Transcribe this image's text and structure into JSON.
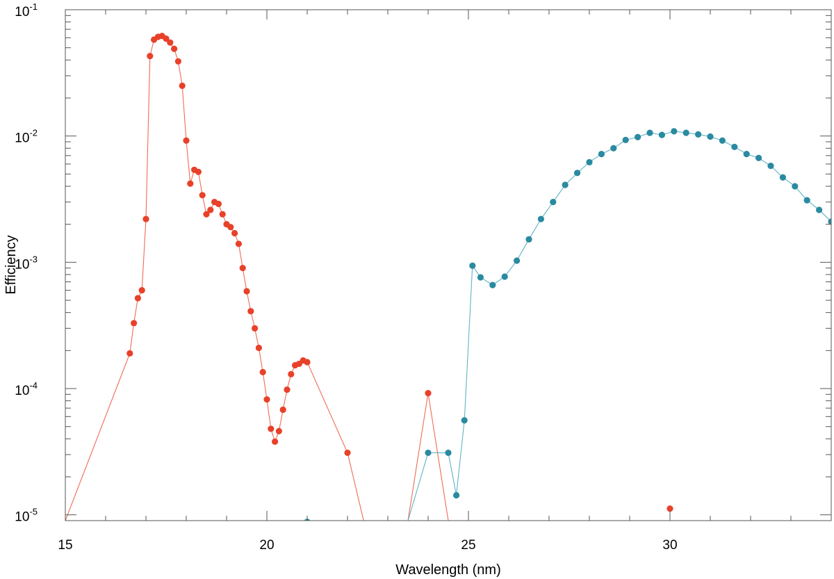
{
  "chart_data": {
    "type": "scatter",
    "title": "",
    "xlabel": "Wavelength (nm)",
    "ylabel": "Efficiency",
    "xlim": [
      15,
      34
    ],
    "ylim": [
      9e-06,
      0.1
    ],
    "yscale": "log",
    "grid": false,
    "x_ticks": [
      {
        "value": 15,
        "label": "15"
      },
      {
        "value": 20,
        "label": "20"
      },
      {
        "value": 25,
        "label": "25"
      },
      {
        "value": 30,
        "label": "30"
      }
    ],
    "y_ticks": [
      {
        "value": 1e-05,
        "base": "10",
        "exp": "-5"
      },
      {
        "value": 0.0001,
        "base": "10",
        "exp": "-4"
      },
      {
        "value": 0.001,
        "base": "10",
        "exp": "-3"
      },
      {
        "value": 0.01,
        "base": "10",
        "exp": "-2"
      },
      {
        "value": 0.1,
        "base": "10",
        "exp": "-1"
      }
    ],
    "series": [
      {
        "color": "#e8412a",
        "line_color": "#f06a55",
        "points": [
          [
            15.0,
            9e-06
          ],
          [
            16.6,
            0.00019
          ],
          [
            16.7,
            0.00033
          ],
          [
            16.8,
            0.00052
          ],
          [
            16.9,
            0.0006
          ],
          [
            17.0,
            0.0022
          ],
          [
            17.1,
            0.043
          ],
          [
            17.2,
            0.058
          ],
          [
            17.3,
            0.061
          ],
          [
            17.4,
            0.062
          ],
          [
            17.5,
            0.059
          ],
          [
            17.6,
            0.055
          ],
          [
            17.7,
            0.049
          ],
          [
            17.8,
            0.039
          ],
          [
            17.9,
            0.025
          ],
          [
            18.0,
            0.0092
          ],
          [
            18.1,
            0.0042
          ],
          [
            18.2,
            0.0054
          ],
          [
            18.3,
            0.0052
          ],
          [
            18.4,
            0.0034
          ],
          [
            18.5,
            0.0024
          ],
          [
            18.6,
            0.0026
          ],
          [
            18.7,
            0.003
          ],
          [
            18.8,
            0.0029
          ],
          [
            18.9,
            0.0024
          ],
          [
            19.0,
            0.002
          ],
          [
            19.1,
            0.0019
          ],
          [
            19.2,
            0.0017
          ],
          [
            19.3,
            0.0014
          ],
          [
            19.4,
            0.0009
          ],
          [
            19.5,
            0.00059
          ],
          [
            19.6,
            0.00041
          ],
          [
            19.7,
            0.0003
          ],
          [
            19.8,
            0.00021
          ],
          [
            19.9,
            0.000135
          ],
          [
            20.0,
            8.2e-05
          ],
          [
            20.1,
            4.8e-05
          ],
          [
            20.2,
            3.8e-05
          ],
          [
            20.3,
            4.6e-05
          ],
          [
            20.4,
            6.8e-05
          ],
          [
            20.5,
            9.8e-05
          ],
          [
            20.6,
            0.00013
          ],
          [
            20.7,
            0.000153
          ],
          [
            20.8,
            0.000157
          ],
          [
            20.9,
            0.000167
          ],
          [
            21.0,
            0.000162
          ],
          [
            22.0,
            3.1e-05
          ],
          [
            22.4,
            9e-06
          ],
          [
            23.5,
            9e-06
          ],
          [
            24.0,
            9.2e-05
          ],
          [
            24.5,
            9e-06
          ],
          [
            30.0,
            1.12e-05
          ]
        ],
        "marker_flags": [
          false,
          true,
          true,
          true,
          true,
          true,
          true,
          true,
          true,
          true,
          true,
          true,
          true,
          true,
          true,
          true,
          true,
          true,
          true,
          true,
          true,
          true,
          true,
          true,
          true,
          true,
          true,
          true,
          true,
          true,
          true,
          true,
          true,
          true,
          true,
          true,
          true,
          true,
          true,
          true,
          true,
          true,
          true,
          true,
          true,
          true,
          true,
          false,
          false,
          true,
          false,
          true
        ],
        "connect_last": false
      },
      {
        "color": "#2a8aa0",
        "line_color": "#5fb3c4",
        "points": [
          [
            21.0,
            8.8e-06
          ],
          [
            23.5,
            9e-06
          ],
          [
            24.0,
            3.1e-05
          ],
          [
            24.5,
            3.1e-05
          ],
          [
            24.7,
            1.43e-05
          ],
          [
            24.9,
            5.6e-05
          ],
          [
            25.1,
            0.00094
          ],
          [
            25.3,
            0.00076
          ],
          [
            25.6,
            0.00066
          ],
          [
            25.9,
            0.00077
          ],
          [
            26.2,
            0.00103
          ],
          [
            26.5,
            0.00152
          ],
          [
            26.8,
            0.0022
          ],
          [
            27.1,
            0.003
          ],
          [
            27.4,
            0.0041
          ],
          [
            27.7,
            0.0051
          ],
          [
            28.0,
            0.0062
          ],
          [
            28.3,
            0.0072
          ],
          [
            28.6,
            0.008
          ],
          [
            28.9,
            0.0093
          ],
          [
            29.2,
            0.0098
          ],
          [
            29.5,
            0.0106
          ],
          [
            29.8,
            0.0102
          ],
          [
            30.1,
            0.0109
          ],
          [
            30.4,
            0.0106
          ],
          [
            30.7,
            0.0103
          ],
          [
            31.0,
            0.0099
          ],
          [
            31.3,
            0.0092
          ],
          [
            31.6,
            0.0082
          ],
          [
            31.9,
            0.0072
          ],
          [
            32.2,
            0.0067
          ],
          [
            32.5,
            0.0058
          ],
          [
            32.8,
            0.0047
          ],
          [
            33.1,
            0.004
          ],
          [
            33.4,
            0.0031
          ],
          [
            33.7,
            0.0026
          ],
          [
            34.0,
            0.0021
          ]
        ],
        "marker_flags": [
          true,
          false,
          true,
          true,
          true,
          true,
          true,
          true,
          true,
          true,
          true,
          true,
          true,
          true,
          true,
          true,
          true,
          true,
          true,
          true,
          true,
          true,
          true,
          true,
          true,
          true,
          true,
          true,
          true,
          true,
          true,
          true,
          true,
          true,
          true,
          true,
          true
        ],
        "connect_first": false
      }
    ]
  }
}
